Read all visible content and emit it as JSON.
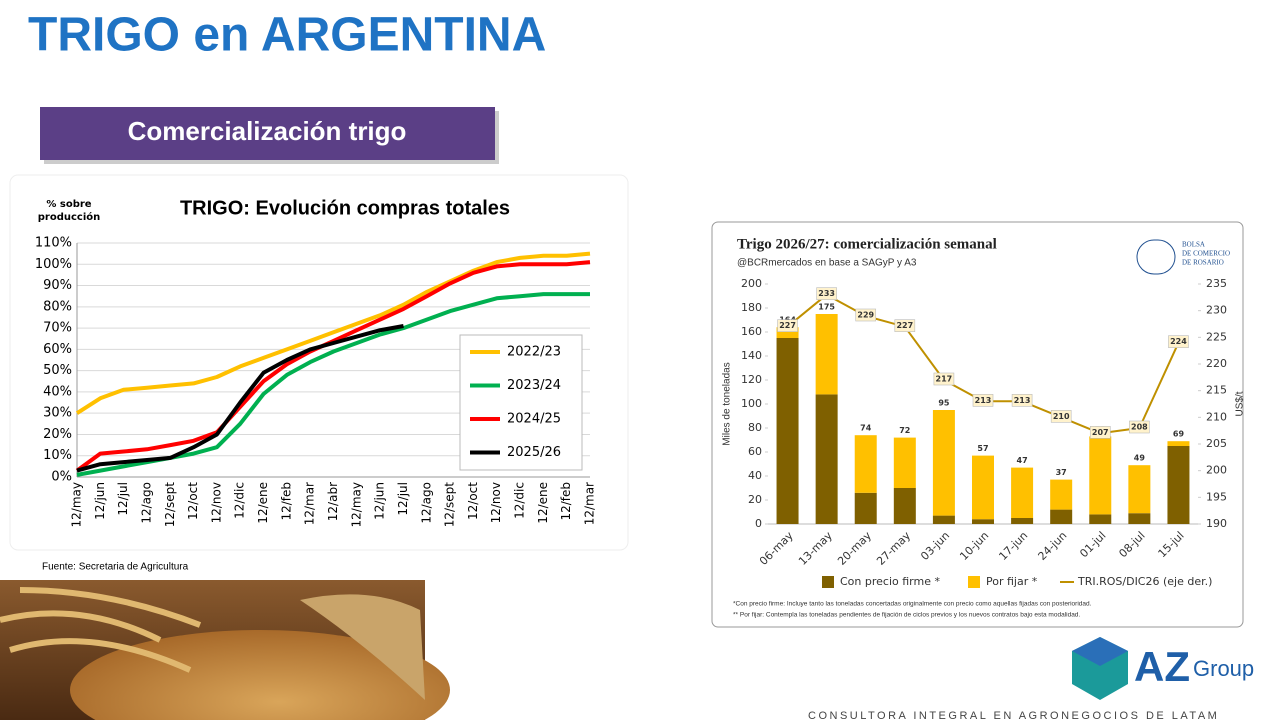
{
  "header": {
    "title": "TRIGO en ARGENTINA",
    "banner": "Comercialización trigo"
  },
  "source": "Fuente: Secretaria de Agricultura",
  "bcr_logo": {
    "line1": "BOLSA",
    "line2": "DE COMERCIO",
    "line3": "DE ROSARIO"
  },
  "brand": {
    "name": "AZ",
    "suffix": "Group",
    "tagline": "CONSULTORA INTEGRAL EN AGRONEGOCIOS DE LATAM"
  },
  "chart_data": [
    {
      "type": "line",
      "title": "TRIGO: Evolución compras totales",
      "ylabel": "% sobre producción",
      "categories": [
        "12/may",
        "12/jun",
        "12/jul",
        "12/ago",
        "12/sept",
        "12/oct",
        "12/nov",
        "12/dic",
        "12/ene",
        "12/feb",
        "12/mar",
        "12/abr",
        "12/may",
        "12/jun",
        "12/jul",
        "12/ago",
        "12/sept",
        "12/oct",
        "12/nov",
        "12/dic",
        "12/ene",
        "12/feb",
        "12/mar"
      ],
      "series": [
        {
          "name": "2022/23",
          "color": "#ffc000",
          "values": [
            30,
            37,
            41,
            42,
            43,
            44,
            47,
            52,
            56,
            60,
            64,
            68,
            72,
            76,
            81,
            87,
            92,
            97,
            101,
            103,
            104,
            104,
            105
          ]
        },
        {
          "name": "2023/24",
          "color": "#00b050",
          "values": [
            1,
            3,
            5,
            7,
            9,
            11,
            14,
            25,
            39,
            48,
            54,
            59,
            63,
            67,
            70,
            74,
            78,
            81,
            84,
            85,
            86,
            86,
            86
          ]
        },
        {
          "name": "2024/25",
          "color": "#ff0000",
          "values": [
            3,
            11,
            12,
            13,
            15,
            17,
            21,
            33,
            45,
            53,
            59,
            64,
            69,
            74,
            79,
            85,
            91,
            96,
            99,
            100,
            100,
            100,
            101
          ]
        },
        {
          "name": "2025/26",
          "color": "#000000",
          "values": [
            3,
            6,
            7,
            8,
            9,
            14,
            20,
            35,
            49,
            55,
            60,
            63,
            66,
            69,
            71,
            null,
            null,
            null,
            null,
            null,
            null,
            null,
            null
          ]
        }
      ],
      "ylim": [
        0,
        110
      ],
      "yticks": [
        {
          "value": 0,
          "label": "0%"
        },
        {
          "value": 10,
          "label": "10%"
        },
        {
          "value": 20,
          "label": "20%"
        },
        {
          "value": 30,
          "label": "30%"
        },
        {
          "value": 40,
          "label": "40%"
        },
        {
          "value": 50,
          "label": "50%"
        },
        {
          "value": 60,
          "label": "60%"
        },
        {
          "value": 70,
          "label": "70%"
        },
        {
          "value": 80,
          "label": "80%"
        },
        {
          "value": 90,
          "label": "90%"
        },
        {
          "value": 100,
          "label": "100%"
        },
        {
          "value": 110,
          "label": "110%"
        }
      ],
      "grid": true,
      "legend": "right"
    },
    {
      "type": "bar",
      "stacked": true,
      "title": "Trigo 2026/27: comercialización semanal",
      "subtitle": "@BCRmercados en base a SAGyP y A3",
      "ylabel": "Miles de toneladas",
      "y2label": "US$/t",
      "categories": [
        "06-may",
        "13-may",
        "20-may",
        "27-may",
        "03-jun",
        "10-jun",
        "17-jun",
        "24-jun",
        "01-jul",
        "08-jul",
        "15-jul"
      ],
      "series": [
        {
          "name": "Con precio firme *",
          "color": "#7f6000",
          "values": [
            155,
            108,
            26,
            30,
            7,
            4,
            5,
            12,
            8,
            9,
            65
          ]
        },
        {
          "name": "Por fijar *",
          "color": "#ffc000",
          "values": [
            9,
            67,
            48,
            42,
            88,
            53,
            42,
            25,
            65,
            40,
            4
          ]
        },
        {
          "name": "TRI.ROS/DIC26 (eje der.)",
          "color": "#bf9000",
          "type": "line",
          "axis": "y2",
          "values": [
            227,
            233,
            229,
            227,
            217,
            213,
            213,
            210,
            207,
            208,
            224
          ]
        }
      ],
      "totals": [
        164,
        175,
        74,
        72,
        95,
        57,
        47,
        37,
        73,
        49,
        69
      ],
      "ylim": [
        0,
        200
      ],
      "yticks": [
        0,
        20,
        40,
        60,
        80,
        100,
        120,
        140,
        160,
        180,
        200
      ],
      "y2lim": [
        190,
        235
      ],
      "y2ticks": [
        190,
        195,
        200,
        205,
        210,
        215,
        220,
        225,
        230,
        235
      ],
      "grid": false,
      "legend": "bottom",
      "notes": [
        "*Con precio firme: Incluye tanto las toneladas concertadas originalmente con precio como aquellas fijadas con posterioridad.",
        "** Por fijar: Contempla las toneladas pendientes de fijación de ciclos previos y los nuevos contratos bajo esta modalidad."
      ]
    }
  ]
}
